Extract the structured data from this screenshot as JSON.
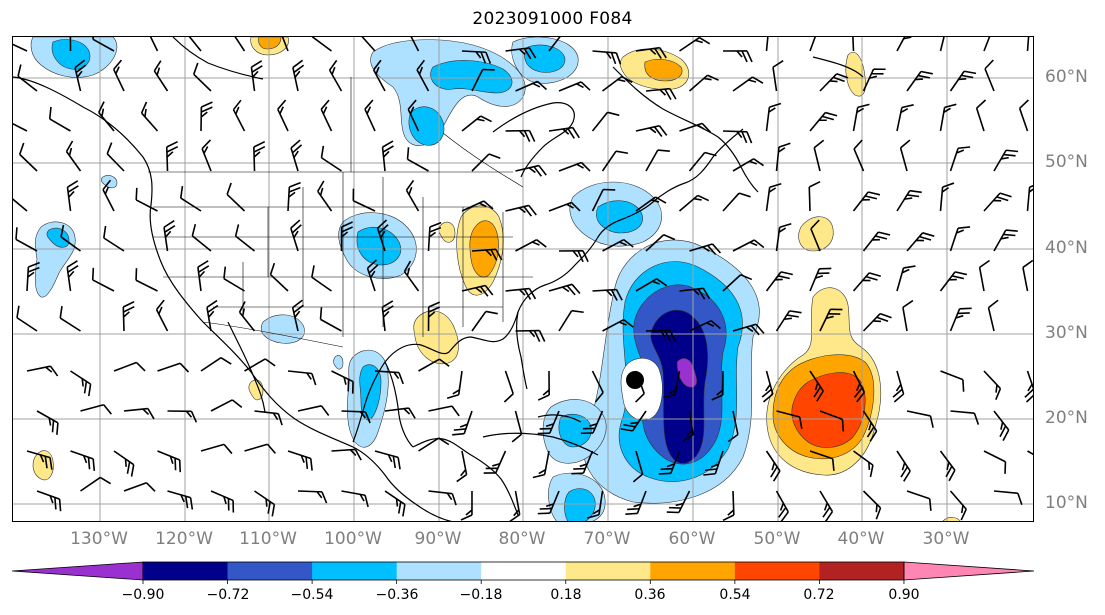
{
  "title": "2023091000 F084",
  "lat_labels": [
    "60°N",
    "50°N",
    "40°N",
    "30°N",
    "20°N",
    "10°N"
  ],
  "lon_labels": [
    "130°W",
    "120°W",
    "110°W",
    "100°W",
    "90°W",
    "80°W",
    "70°W",
    "60°W",
    "50°W",
    "40°W",
    "30°W"
  ],
  "colorbar": {
    "tick_labels": [
      "−0.90",
      "−0.72",
      "−0.54",
      "−0.36",
      "−0.18",
      "0.18",
      "0.36",
      "0.54",
      "0.72",
      "0.90"
    ],
    "colors": {
      "below_min": "#9b30d0",
      "bins": [
        "#00008b",
        "#3457c8",
        "#00bfff",
        "#aee0ff",
        "#ffffff",
        "#ffe88a",
        "#ffa500",
        "#ff4500",
        "#b22222"
      ],
      "above_max": "#ff85b3"
    },
    "extend": "both"
  },
  "map": {
    "projection": "lat-lon",
    "lon_range": [
      -137,
      -20
    ],
    "lat_range": [
      7,
      65
    ],
    "marker": {
      "name": "storm-center",
      "lon": -68.6,
      "lat": 24.5
    },
    "features": [
      "coastlines",
      "country borders",
      "US state borders",
      "gridlines",
      "wind barbs",
      "filled contours"
    ]
  }
}
